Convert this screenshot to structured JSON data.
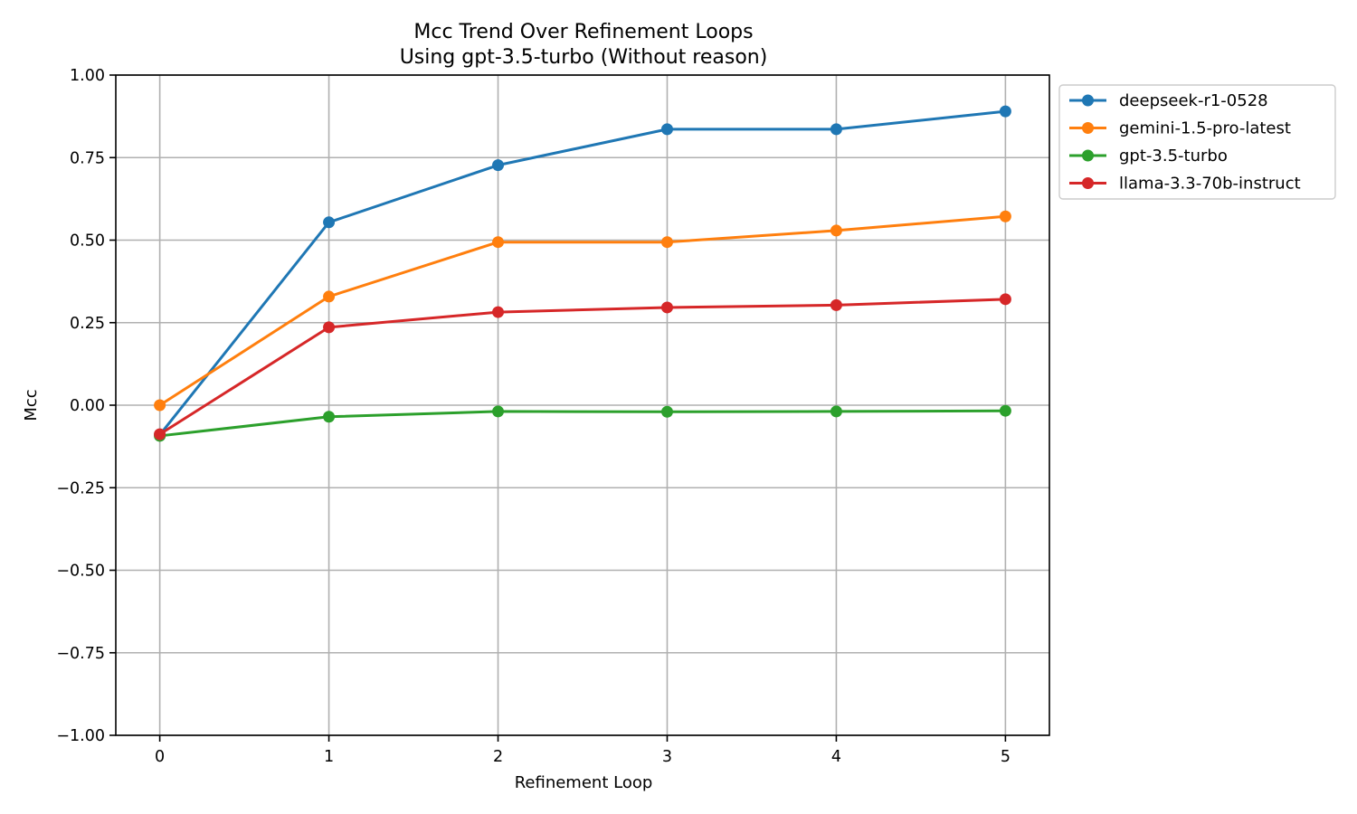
{
  "chart_data": {
    "type": "line",
    "title": "Mcc Trend Over Refinement Loops",
    "subtitle": "Using gpt-3.5-turbo (Without reason)",
    "xlabel": "Refinement Loop",
    "ylabel": "Mcc",
    "x": [
      0,
      1,
      2,
      3,
      4,
      5
    ],
    "x_tick_labels": [
      "0",
      "1",
      "2",
      "3",
      "4",
      "5"
    ],
    "xlim": [
      -0.26,
      5.26
    ],
    "ylim": [
      -1.0,
      1.0
    ],
    "y_ticks": [
      -1.0,
      -0.75,
      -0.5,
      -0.25,
      0.0,
      0.25,
      0.5,
      0.75,
      1.0
    ],
    "y_tick_labels": [
      "−1.00",
      "−0.75",
      "−0.50",
      "−0.25",
      "0.00",
      "0.25",
      "0.50",
      "0.75",
      "1.00"
    ],
    "grid": true,
    "legend_position": "outside-top-right",
    "series": [
      {
        "name": "deepseek-r1-0528",
        "color": "#1f77b4",
        "values": [
          -0.09,
          0.554,
          0.727,
          0.836,
          0.836,
          0.89
        ]
      },
      {
        "name": "gemini-1.5-pro-latest",
        "color": "#ff7f0e",
        "values": [
          0.0,
          0.329,
          0.494,
          0.494,
          0.529,
          0.572
        ]
      },
      {
        "name": "gpt-3.5-turbo",
        "color": "#2ca02c",
        "values": [
          -0.093,
          -0.035,
          -0.019,
          -0.02,
          -0.019,
          -0.017
        ]
      },
      {
        "name": "llama-3.3-70b-instruct",
        "color": "#d62728",
        "values": [
          -0.088,
          0.236,
          0.282,
          0.296,
          0.303,
          0.321
        ]
      }
    ]
  }
}
